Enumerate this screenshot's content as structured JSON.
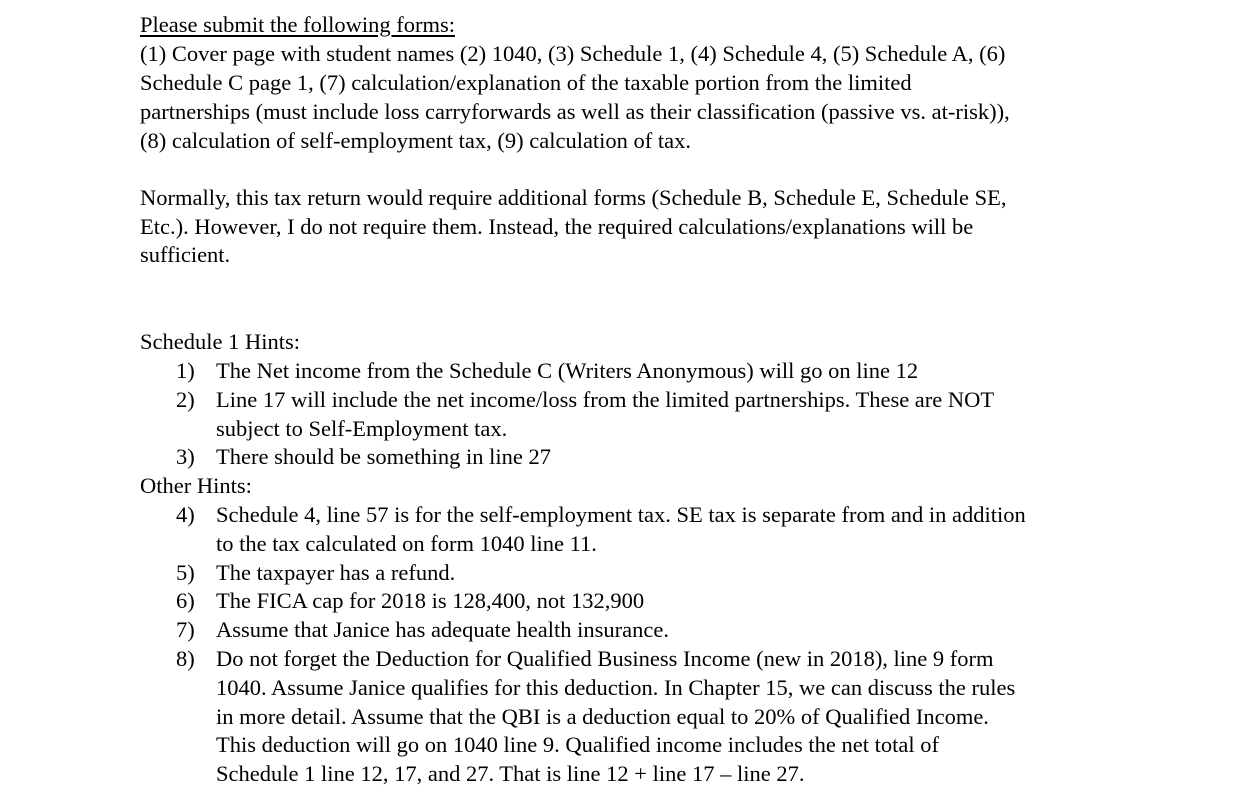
{
  "heading": "Please submit the following forms:",
  "forms_lines": [
    "(1) Cover page with student names (2) 1040, (3) Schedule 1, (4) Schedule 4, (5) Schedule A, (6)",
    "Schedule C page 1, (7) calculation/explanation of the taxable portion from the limited",
    "partnerships (must include loss carryforwards as well as their classification (passive vs. at-risk)),",
    "(8) calculation of self-employment tax, (9) calculation of tax."
  ],
  "note_lines": [
    "Normally, this tax return would require additional forms (Schedule B, Schedule E, Schedule SE,",
    "Etc.). However, I do not require them. Instead, the required calculations/explanations will be",
    "sufficient."
  ],
  "schedule1_heading": "Schedule 1 Hints:",
  "other_heading": "Other Hints:",
  "hints": [
    {
      "num": "1)",
      "lines": [
        "The Net income from the Schedule C (Writers Anonymous) will go on line 12"
      ]
    },
    {
      "num": "2)",
      "lines": [
        "Line 17 will include the net income/loss from the limited partnerships. These are NOT",
        "subject to Self-Employment tax."
      ]
    },
    {
      "num": "3)",
      "lines": [
        "There should be something in line 27"
      ]
    },
    {
      "num": "4)",
      "lines": [
        "Schedule 4, line 57 is for the self-employment tax. SE tax is separate from and in addition",
        "to the tax calculated on form 1040 line 11."
      ]
    },
    {
      "num": "5)",
      "lines": [
        "The taxpayer has a refund."
      ]
    },
    {
      "num": "6)",
      "lines": [
        "The FICA cap for 2018 is 128,400, not 132,900"
      ]
    },
    {
      "num": "7)",
      "lines": [
        "Assume that Janice has adequate health insurance."
      ]
    },
    {
      "num": "8)",
      "lines": [
        "Do not forget the Deduction for Qualified Business Income (new in 2018), line 9 form",
        "1040. Assume Janice qualifies for this deduction. In Chapter 15, we can discuss the rules",
        "in more detail. Assume that the QBI is a deduction equal to 20% of Qualified Income.",
        "This deduction will go on 1040 line 9. Qualified income includes the net total of",
        "Schedule 1 line 12, 17, and 27. That is line 12 + line 17 – line 27."
      ]
    }
  ]
}
